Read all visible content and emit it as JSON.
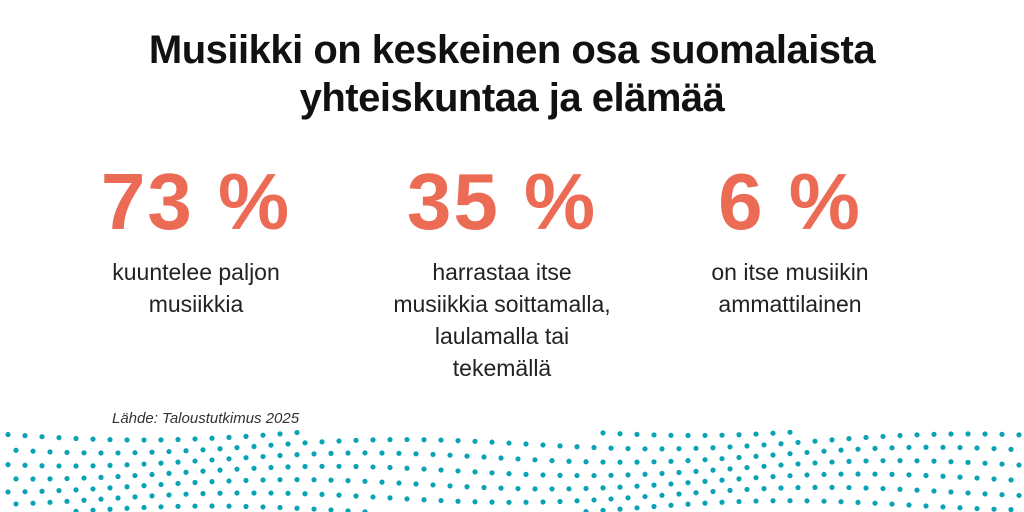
{
  "title": {
    "line1": "Musiikki on keskeinen osa suomalaista",
    "line2": "yhteiskuntaa ja elämää"
  },
  "stats": [
    {
      "value": "73 %",
      "description": [
        "kuuntelee paljon",
        "musiikkia"
      ]
    },
    {
      "value": "35 %",
      "description": [
        "harrastaa itse",
        "musiikkia soittamalla,",
        "laulamalla tai",
        "tekemällä"
      ]
    },
    {
      "value": "6 %",
      "description": [
        "on itse musiikin",
        "ammattilainen"
      ]
    }
  ],
  "source": "Lähde: Taloustutkimus 2025",
  "colors": {
    "accent": "#ec6b55",
    "dots": "#0aa3b5"
  }
}
